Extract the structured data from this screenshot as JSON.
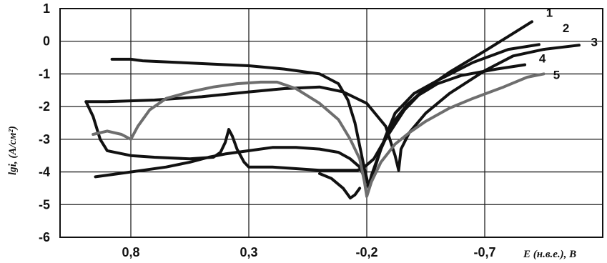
{
  "chart_data": {
    "type": "line",
    "title": "",
    "xlabel": "E (н.в.е.), В",
    "ylabel": "lgi, (А/см²)",
    "x_reversed": true,
    "xlim": [
      1.1,
      -1.2
    ],
    "ylim": [
      -6,
      1
    ],
    "grid": true,
    "x_ticks": [
      0.8,
      0.3,
      -0.2,
      -0.7
    ],
    "x_tick_labels": [
      "0,8",
      "0,3",
      "-0,2",
      "-0,7"
    ],
    "y_ticks": [
      1,
      0,
      -1,
      -2,
      -3,
      -4,
      -5,
      -6
    ],
    "y_tick_labels": [
      "1",
      "0",
      "-1",
      "-2",
      "-3",
      "-4",
      "-5",
      "-6"
    ],
    "series": [
      {
        "name": "1",
        "color": "#111111",
        "points": [
          [
            0.88,
            -0.55
          ],
          [
            0.8,
            -0.55
          ],
          [
            0.75,
            -0.6
          ],
          [
            0.6,
            -0.65
          ],
          [
            0.45,
            -0.7
          ],
          [
            0.3,
            -0.75
          ],
          [
            0.15,
            -0.85
          ],
          [
            0.0,
            -1.0
          ],
          [
            -0.08,
            -1.3
          ],
          [
            -0.12,
            -1.8
          ],
          [
            -0.15,
            -2.5
          ],
          [
            -0.17,
            -3.2
          ],
          [
            -0.19,
            -3.9
          ],
          [
            -0.205,
            -4.35
          ],
          [
            -0.21,
            -4.5
          ],
          [
            -0.22,
            -4.2
          ],
          [
            -0.26,
            -3.3
          ],
          [
            -0.31,
            -2.5
          ],
          [
            -0.37,
            -1.95
          ],
          [
            -0.44,
            -1.5
          ],
          [
            -0.55,
            -0.95
          ],
          [
            -0.7,
            -0.3
          ],
          [
            -0.8,
            0.15
          ],
          [
            -0.9,
            0.6
          ]
        ]
      },
      {
        "name": "2",
        "color": "#111111",
        "points": [
          [
            0.95,
            -4.15
          ],
          [
            0.85,
            -4.05
          ],
          [
            0.75,
            -3.95
          ],
          [
            0.65,
            -3.85
          ],
          [
            0.55,
            -3.7
          ],
          [
            0.47,
            -3.55
          ],
          [
            0.4,
            -3.45
          ],
          [
            0.3,
            -3.35
          ],
          [
            0.2,
            -3.25
          ],
          [
            0.1,
            -3.25
          ],
          [
            0.0,
            -3.3
          ],
          [
            -0.08,
            -3.4
          ],
          [
            -0.13,
            -3.6
          ],
          [
            -0.17,
            -3.85
          ],
          [
            -0.195,
            -4.25
          ],
          [
            -0.21,
            -4.4
          ],
          [
            -0.22,
            -4.1
          ],
          [
            -0.25,
            -3.5
          ],
          [
            -0.28,
            -2.9
          ],
          [
            -0.32,
            -2.2
          ],
          [
            -0.4,
            -1.6
          ],
          [
            -0.5,
            -1.2
          ],
          [
            -0.65,
            -0.65
          ],
          [
            -0.8,
            -0.25
          ],
          [
            -0.93,
            -0.1
          ]
        ]
      },
      {
        "name": "3",
        "color": "#111111",
        "points": [
          [
            0.99,
            -1.85
          ],
          [
            0.9,
            -1.85
          ],
          [
            0.7,
            -1.8
          ],
          [
            0.5,
            -1.7
          ],
          [
            0.3,
            -1.55
          ],
          [
            0.15,
            -1.45
          ],
          [
            0.0,
            -1.4
          ],
          [
            -0.1,
            -1.55
          ],
          [
            -0.2,
            -1.9
          ],
          [
            -0.28,
            -2.6
          ],
          [
            -0.32,
            -3.5
          ],
          [
            -0.335,
            -3.95
          ],
          [
            -0.345,
            -3.3
          ],
          [
            -0.38,
            -2.8
          ],
          [
            -0.45,
            -2.2
          ],
          [
            -0.55,
            -1.6
          ],
          [
            -0.7,
            -0.9
          ],
          [
            -0.82,
            -0.45
          ],
          [
            -0.95,
            -0.25
          ],
          [
            -1.1,
            -0.12
          ]
        ]
      },
      {
        "name": "4",
        "color": "#111111",
        "points": [
          [
            0.99,
            -1.85
          ],
          [
            0.96,
            -2.3
          ],
          [
            0.93,
            -3.0
          ],
          [
            0.9,
            -3.35
          ],
          [
            0.8,
            -3.5
          ],
          [
            0.7,
            -3.55
          ],
          [
            0.55,
            -3.6
          ],
          [
            0.45,
            -3.55
          ],
          [
            0.42,
            -3.4
          ],
          [
            0.4,
            -3.1
          ],
          [
            0.385,
            -2.7
          ],
          [
            0.37,
            -2.9
          ],
          [
            0.35,
            -3.3
          ],
          [
            0.32,
            -3.7
          ],
          [
            0.3,
            -3.85
          ],
          [
            0.2,
            -3.85
          ],
          [
            0.1,
            -3.9
          ],
          [
            0.0,
            -3.95
          ],
          [
            -0.1,
            -3.95
          ],
          [
            -0.16,
            -3.95
          ],
          [
            -0.19,
            -3.85
          ],
          [
            -0.23,
            -3.6
          ],
          [
            -0.27,
            -3.1
          ],
          [
            -0.31,
            -2.65
          ],
          [
            -0.36,
            -2.1
          ],
          [
            -0.42,
            -1.65
          ],
          [
            -0.5,
            -1.3
          ],
          [
            -0.6,
            -1.05
          ],
          [
            -0.75,
            -0.85
          ],
          [
            -0.87,
            -0.72
          ]
        ]
      },
      {
        "name": "5",
        "color": "#6e6e6e",
        "points": [
          [
            0.96,
            -2.85
          ],
          [
            0.9,
            -2.75
          ],
          [
            0.84,
            -2.85
          ],
          [
            0.8,
            -3.0
          ],
          [
            0.77,
            -2.6
          ],
          [
            0.72,
            -2.1
          ],
          [
            0.65,
            -1.75
          ],
          [
            0.55,
            -1.55
          ],
          [
            0.45,
            -1.4
          ],
          [
            0.35,
            -1.3
          ],
          [
            0.25,
            -1.25
          ],
          [
            0.18,
            -1.25
          ],
          [
            0.1,
            -1.45
          ],
          [
            0.0,
            -1.9
          ],
          [
            -0.08,
            -2.4
          ],
          [
            -0.13,
            -3.0
          ],
          [
            -0.17,
            -3.6
          ],
          [
            -0.19,
            -4.3
          ],
          [
            -0.2,
            -4.75
          ],
          [
            -0.22,
            -4.3
          ],
          [
            -0.26,
            -3.7
          ],
          [
            -0.32,
            -3.15
          ],
          [
            -0.38,
            -2.8
          ],
          [
            -0.45,
            -2.45
          ],
          [
            -0.55,
            -2.05
          ],
          [
            -0.65,
            -1.75
          ],
          [
            -0.78,
            -1.4
          ],
          [
            -0.88,
            -1.1
          ],
          [
            -0.95,
            -1.0
          ]
        ]
      }
    ],
    "extra_segments": [
      {
        "color": "#111111",
        "points": [
          [
            0.0,
            -4.05
          ],
          [
            -0.05,
            -4.2
          ],
          [
            -0.1,
            -4.5
          ],
          [
            -0.13,
            -4.8
          ],
          [
            -0.15,
            -4.7
          ],
          [
            -0.17,
            -4.5
          ]
        ]
      }
    ],
    "curve_labels": [
      {
        "text": "1",
        "at": [
          -0.96,
          0.75
        ]
      },
      {
        "text": "2",
        "at": [
          -1.03,
          0.28
        ]
      },
      {
        "text": "3",
        "at": [
          -1.15,
          -0.15
        ]
      },
      {
        "text": "4",
        "at": [
          -0.93,
          -0.65
        ]
      },
      {
        "text": "5",
        "at": [
          -0.99,
          -1.15
        ]
      }
    ]
  }
}
